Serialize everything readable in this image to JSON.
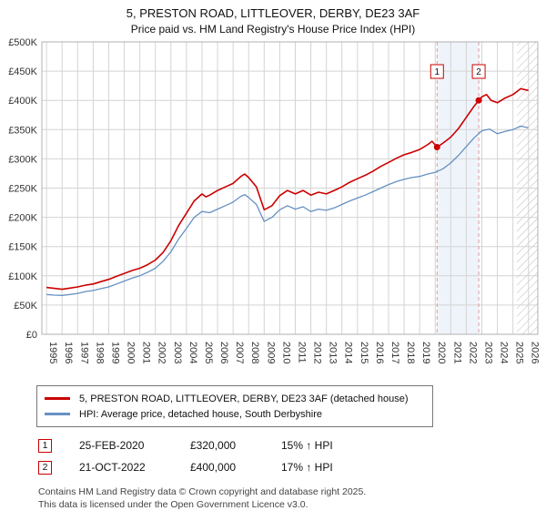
{
  "page": {
    "title": "5, PRESTON ROAD, LITTLEOVER, DERBY, DE23 3AF",
    "subtitle": "Price paid vs. HM Land Registry's House Price Index (HPI)"
  },
  "chart_data": {
    "type": "line",
    "title": "5, PRESTON ROAD, LITTLEOVER, DERBY, DE23 3AF",
    "subtitle": "Price paid vs. HM Land Registry's House Price Index (HPI)",
    "grid": true,
    "xlim": [
      1994.7,
      2026.6
    ],
    "ylim": [
      0,
      500000
    ],
    "x_tick_years": [
      1995,
      1996,
      1997,
      1998,
      1999,
      2000,
      2001,
      2002,
      2003,
      2004,
      2005,
      2006,
      2007,
      2008,
      2009,
      2010,
      2011,
      2012,
      2013,
      2014,
      2015,
      2016,
      2017,
      2018,
      2019,
      2020,
      2021,
      2022,
      2023,
      2024,
      2025,
      2026
    ],
    "y_ticks": [
      {
        "value": 0,
        "label": "£0"
      },
      {
        "value": 50000,
        "label": "£50K"
      },
      {
        "value": 100000,
        "label": "£100K"
      },
      {
        "value": 150000,
        "label": "£150K"
      },
      {
        "value": 200000,
        "label": "£200K"
      },
      {
        "value": 250000,
        "label": "£250K"
      },
      {
        "value": 300000,
        "label": "£300K"
      },
      {
        "value": 350000,
        "label": "£350K"
      },
      {
        "value": 400000,
        "label": "£400K"
      },
      {
        "value": 450000,
        "label": "£450K"
      },
      {
        "value": 500000,
        "label": "£500K"
      }
    ],
    "colors": {
      "property_line": "#cc0000",
      "hpi_line": "#6691c2",
      "grid": "#d4d4d4",
      "plot_border": "#b0b0b0",
      "sale_dashed_line": "#dd9999",
      "shaded_region_fill": "#e4ecf9",
      "hatch_stroke": "#bbbbbb",
      "marker_box_border": "#cc0000"
    },
    "series": [
      {
        "name": "5, PRESTON ROAD, LITTLEOVER, DERBY, DE23 3AF (detached house)",
        "color": "#cc0000",
        "points": [
          [
            1995.0,
            80000
          ],
          [
            1995.5,
            78500
          ],
          [
            1996.0,
            77000
          ],
          [
            1996.5,
            79000
          ],
          [
            1997.0,
            81000
          ],
          [
            1997.5,
            84000
          ],
          [
            1998.0,
            86000
          ],
          [
            1998.5,
            90000
          ],
          [
            1999.0,
            94000
          ],
          [
            1999.5,
            99000
          ],
          [
            2000.0,
            104000
          ],
          [
            2000.5,
            109000
          ],
          [
            2001.0,
            113000
          ],
          [
            2001.5,
            119000
          ],
          [
            2002.0,
            127000
          ],
          [
            2002.5,
            140000
          ],
          [
            2003.0,
            160000
          ],
          [
            2003.5,
            186000
          ],
          [
            2004.0,
            207000
          ],
          [
            2004.5,
            228000
          ],
          [
            2005.0,
            240000
          ],
          [
            2005.25,
            235000
          ],
          [
            2005.5,
            238000
          ],
          [
            2006.0,
            246000
          ],
          [
            2006.5,
            252000
          ],
          [
            2007.0,
            258000
          ],
          [
            2007.5,
            270000
          ],
          [
            2007.75,
            274000
          ],
          [
            2008.0,
            268000
          ],
          [
            2008.5,
            252000
          ],
          [
            2009.0,
            213000
          ],
          [
            2009.5,
            220000
          ],
          [
            2010.0,
            237000
          ],
          [
            2010.5,
            246000
          ],
          [
            2011.0,
            240000
          ],
          [
            2011.5,
            246000
          ],
          [
            2012.0,
            238000
          ],
          [
            2012.5,
            243000
          ],
          [
            2013.0,
            240000
          ],
          [
            2013.5,
            246000
          ],
          [
            2014.0,
            252000
          ],
          [
            2014.5,
            260000
          ],
          [
            2015.0,
            266000
          ],
          [
            2015.5,
            272000
          ],
          [
            2016.0,
            279000
          ],
          [
            2016.5,
            287000
          ],
          [
            2017.0,
            294000
          ],
          [
            2017.5,
            301000
          ],
          [
            2018.0,
            307000
          ],
          [
            2018.5,
            311000
          ],
          [
            2019.0,
            316000
          ],
          [
            2019.5,
            324000
          ],
          [
            2019.8,
            330000
          ],
          [
            2020.12,
            320000
          ],
          [
            2020.5,
            327000
          ],
          [
            2021.0,
            337000
          ],
          [
            2021.5,
            352000
          ],
          [
            2022.0,
            371000
          ],
          [
            2022.5,
            390000
          ],
          [
            2022.8,
            400000
          ],
          [
            2023.0,
            406000
          ],
          [
            2023.3,
            410000
          ],
          [
            2023.6,
            400000
          ],
          [
            2024.0,
            396000
          ],
          [
            2024.5,
            404000
          ],
          [
            2025.0,
            410000
          ],
          [
            2025.5,
            420000
          ],
          [
            2026.0,
            417000
          ]
        ]
      },
      {
        "name": "HPI: Average price, detached house, South Derbyshire",
        "color": "#6691c2",
        "points": [
          [
            1995.0,
            68000
          ],
          [
            1995.5,
            67000
          ],
          [
            1996.0,
            66500
          ],
          [
            1996.5,
            68000
          ],
          [
            1997.0,
            70000
          ],
          [
            1997.5,
            73000
          ],
          [
            1998.0,
            75000
          ],
          [
            1998.5,
            78000
          ],
          [
            1999.0,
            81000
          ],
          [
            1999.5,
            86000
          ],
          [
            2000.0,
            91000
          ],
          [
            2000.5,
            96000
          ],
          [
            2001.0,
            100000
          ],
          [
            2001.5,
            106000
          ],
          [
            2002.0,
            113000
          ],
          [
            2002.5,
            125000
          ],
          [
            2003.0,
            141000
          ],
          [
            2003.5,
            163000
          ],
          [
            2004.0,
            181000
          ],
          [
            2004.5,
            200000
          ],
          [
            2005.0,
            210000
          ],
          [
            2005.5,
            208000
          ],
          [
            2006.0,
            214000
          ],
          [
            2006.5,
            220000
          ],
          [
            2007.0,
            226000
          ],
          [
            2007.5,
            236000
          ],
          [
            2007.75,
            239000
          ],
          [
            2008.0,
            234000
          ],
          [
            2008.5,
            222000
          ],
          [
            2009.0,
            193000
          ],
          [
            2009.5,
            200000
          ],
          [
            2010.0,
            213000
          ],
          [
            2010.5,
            220000
          ],
          [
            2011.0,
            214000
          ],
          [
            2011.5,
            218000
          ],
          [
            2012.0,
            210000
          ],
          [
            2012.5,
            214000
          ],
          [
            2013.0,
            212000
          ],
          [
            2013.5,
            216000
          ],
          [
            2014.0,
            222000
          ],
          [
            2014.5,
            228000
          ],
          [
            2015.0,
            233000
          ],
          [
            2015.5,
            238000
          ],
          [
            2016.0,
            244000
          ],
          [
            2016.5,
            250000
          ],
          [
            2017.0,
            256000
          ],
          [
            2017.5,
            261000
          ],
          [
            2018.0,
            265000
          ],
          [
            2018.5,
            268000
          ],
          [
            2019.0,
            270000
          ],
          [
            2019.5,
            274000
          ],
          [
            2020.0,
            277000
          ],
          [
            2020.5,
            283000
          ],
          [
            2021.0,
            293000
          ],
          [
            2021.5,
            306000
          ],
          [
            2022.0,
            321000
          ],
          [
            2022.5,
            336000
          ],
          [
            2023.0,
            348000
          ],
          [
            2023.5,
            351000
          ],
          [
            2024.0,
            343000
          ],
          [
            2024.5,
            347000
          ],
          [
            2025.0,
            350000
          ],
          [
            2025.5,
            356000
          ],
          [
            2026.0,
            353000
          ]
        ]
      }
    ],
    "sale_markers": [
      {
        "label": "1",
        "x": 2020.12,
        "value": 320000
      },
      {
        "label": "2",
        "x": 2022.8,
        "value": 400000
      }
    ],
    "shaded_region": [
      2020.12,
      2022.8
    ],
    "hatched_region": [
      2025.25,
      2026.6
    ]
  },
  "legend": {
    "items": [
      {
        "label": "5, PRESTON ROAD, LITTLEOVER, DERBY, DE23 3AF (detached house)",
        "color": "#cc0000"
      },
      {
        "label": "HPI: Average price, detached house, South Derbyshire",
        "color": "#6691c2"
      }
    ]
  },
  "events": [
    {
      "num": "1",
      "date": "25-FEB-2020",
      "price": "£320,000",
      "hpi_change": "15% ↑ HPI"
    },
    {
      "num": "2",
      "date": "21-OCT-2022",
      "price": "£400,000",
      "hpi_change": "17% ↑ HPI"
    }
  ],
  "footer": {
    "line1": "Contains HM Land Registry data © Crown copyright and database right 2025.",
    "line2": "This data is licensed under the Open Government Licence v3.0."
  }
}
